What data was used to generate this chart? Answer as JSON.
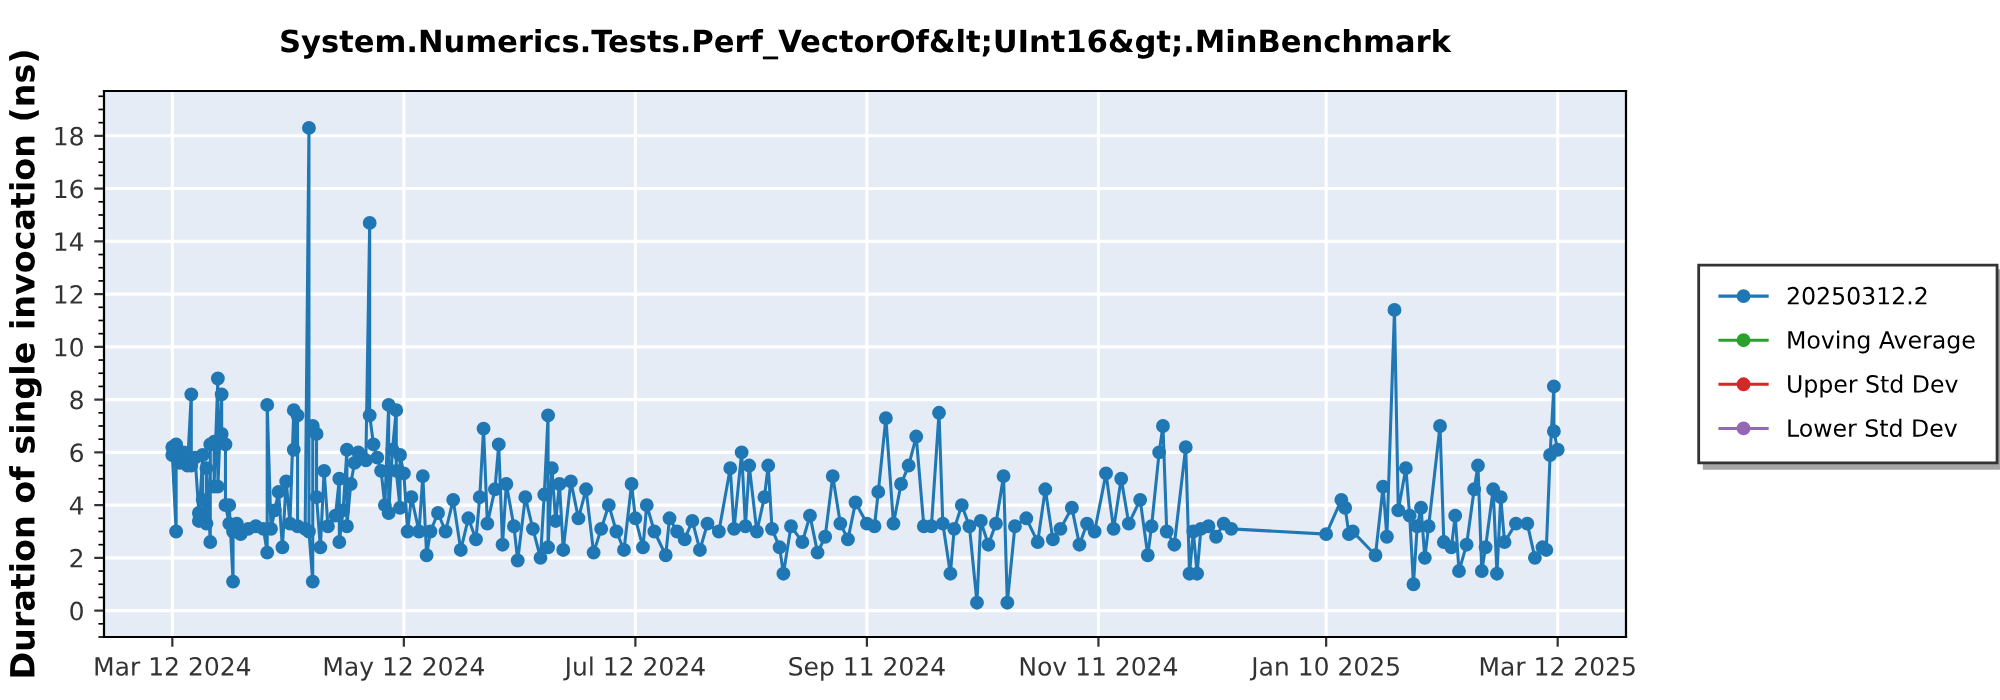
{
  "chart_data": {
    "type": "line",
    "title": "System.Numerics.Tests.Perf_VectorOf&lt;UInt16&gt;.MinBenchmark",
    "ylabel": "Duration of single invocation (ns)",
    "xlim": [
      "2024-02-23",
      "2025-03-30"
    ],
    "ylim": [
      -1,
      19.7
    ],
    "xticks": [
      {
        "value": "2024-03-12",
        "label": "Mar 12 2024"
      },
      {
        "value": "2024-05-12",
        "label": "May 12 2024"
      },
      {
        "value": "2024-07-12",
        "label": "Jul 12 2024"
      },
      {
        "value": "2024-09-11",
        "label": "Sep 11 2024"
      },
      {
        "value": "2024-11-11",
        "label": "Nov 11 2024"
      },
      {
        "value": "2025-01-10",
        "label": "Jan 10 2025"
      },
      {
        "value": "2025-03-12",
        "label": "Mar 12 2025"
      }
    ],
    "yticks": [
      0,
      2,
      4,
      6,
      8,
      10,
      12,
      14,
      16,
      18
    ],
    "grid": true,
    "legend": "right",
    "marker": "circle",
    "line_style": "solid",
    "series": [
      {
        "name": "20250312.2",
        "color": "#1f77b4",
        "x": [
          "2024-03-12",
          "2024-03-12",
          "2024-03-13",
          "2024-03-13",
          "2024-03-14",
          "2024-03-15",
          "2024-03-16",
          "2024-03-17",
          "2024-03-17",
          "2024-03-18",
          "2024-03-19",
          "2024-03-19",
          "2024-03-20",
          "2024-03-20",
          "2024-03-21",
          "2024-03-21",
          "2024-03-22",
          "2024-03-22",
          "2024-03-23",
          "2024-03-23",
          "2024-03-24",
          "2024-03-24",
          "2024-03-25",
          "2024-03-25",
          "2024-03-26",
          "2024-03-26",
          "2024-03-27",
          "2024-03-27",
          "2024-03-28",
          "2024-03-28",
          "2024-03-29",
          "2024-03-30",
          "2024-04-01",
          "2024-04-03",
          "2024-04-05",
          "2024-04-06",
          "2024-04-06",
          "2024-04-07",
          "2024-04-08",
          "2024-04-09",
          "2024-04-10",
          "2024-04-11",
          "2024-04-12",
          "2024-04-13",
          "2024-04-13",
          "2024-04-14",
          "2024-04-14",
          "2024-04-16",
          "2024-04-17",
          "2024-04-17",
          "2024-04-18",
          "2024-04-18",
          "2024-04-19",
          "2024-04-19",
          "2024-04-20",
          "2024-04-21",
          "2024-04-22",
          "2024-04-24",
          "2024-04-25",
          "2024-04-25",
          "2024-04-26",
          "2024-04-27",
          "2024-04-27",
          "2024-04-28",
          "2024-04-29",
          "2024-04-30",
          "2024-05-01",
          "2024-05-02",
          "2024-05-03",
          "2024-05-03",
          "2024-05-04",
          "2024-05-05",
          "2024-05-06",
          "2024-05-07",
          "2024-05-08",
          "2024-05-08",
          "2024-05-09",
          "2024-05-10",
          "2024-05-10",
          "2024-05-11",
          "2024-05-11",
          "2024-05-12",
          "2024-05-13",
          "2024-05-14",
          "2024-05-16",
          "2024-05-17",
          "2024-05-18",
          "2024-05-19",
          "2024-05-21",
          "2024-05-23",
          "2024-05-25",
          "2024-05-27",
          "2024-05-29",
          "2024-05-31",
          "2024-06-01",
          "2024-06-02",
          "2024-06-03",
          "2024-06-05",
          "2024-06-06",
          "2024-06-07",
          "2024-06-08",
          "2024-06-10",
          "2024-06-11",
          "2024-06-13",
          "2024-06-15",
          "2024-06-17",
          "2024-06-18",
          "2024-06-19",
          "2024-06-19",
          "2024-06-20",
          "2024-06-21",
          "2024-06-22",
          "2024-06-23",
          "2024-06-25",
          "2024-06-27",
          "2024-06-29",
          "2024-07-01",
          "2024-07-03",
          "2024-07-05",
          "2024-07-07",
          "2024-07-09",
          "2024-07-11",
          "2024-07-12",
          "2024-07-14",
          "2024-07-15",
          "2024-07-17",
          "2024-07-20",
          "2024-07-21",
          "2024-07-23",
          "2024-07-25",
          "2024-07-27",
          "2024-07-29",
          "2024-07-31",
          "2024-08-03",
          "2024-08-06",
          "2024-08-07",
          "2024-08-09",
          "2024-08-10",
          "2024-08-11",
          "2024-08-13",
          "2024-08-15",
          "2024-08-16",
          "2024-08-17",
          "2024-08-19",
          "2024-08-20",
          "2024-08-22",
          "2024-08-25",
          "2024-08-27",
          "2024-08-29",
          "2024-08-31",
          "2024-09-02",
          "2024-09-04",
          "2024-09-06",
          "2024-09-08",
          "2024-09-11",
          "2024-09-13",
          "2024-09-14",
          "2024-09-16",
          "2024-09-18",
          "2024-09-20",
          "2024-09-22",
          "2024-09-24",
          "2024-09-26",
          "2024-09-28",
          "2024-09-30",
          "2024-10-01",
          "2024-10-03",
          "2024-10-04",
          "2024-10-06",
          "2024-10-08",
          "2024-10-10",
          "2024-10-11",
          "2024-10-13",
          "2024-10-15",
          "2024-10-17",
          "2024-10-18",
          "2024-10-20",
          "2024-10-23",
          "2024-10-26",
          "2024-10-28",
          "2024-10-30",
          "2024-11-01",
          "2024-11-04",
          "2024-11-06",
          "2024-11-08",
          "2024-11-10",
          "2024-11-13",
          "2024-11-15",
          "2024-11-17",
          "2024-11-19",
          "2024-11-22",
          "2024-11-24",
          "2024-11-25",
          "2024-11-27",
          "2024-11-28",
          "2024-11-29",
          "2024-12-01",
          "2024-12-04",
          "2024-12-05",
          "2024-12-06",
          "2024-12-07",
          "2024-12-08",
          "2024-12-10",
          "2024-12-12",
          "2024-12-14",
          "2024-12-16",
          "2025-01-10",
          "2025-01-14",
          "2025-01-15",
          "2025-01-16",
          "2025-01-17",
          "2025-01-23",
          "2025-01-25",
          "2025-01-26",
          "2025-01-28",
          "2025-01-29",
          "2025-01-31",
          "2025-02-01",
          "2025-02-02",
          "2025-02-03",
          "2025-02-04",
          "2025-02-05",
          "2025-02-06",
          "2025-02-09",
          "2025-02-10",
          "2025-02-12",
          "2025-02-13",
          "2025-02-14",
          "2025-02-16",
          "2025-02-18",
          "2025-02-19",
          "2025-02-20",
          "2025-02-21",
          "2025-02-23",
          "2025-02-24",
          "2025-02-25",
          "2025-02-26",
          "2025-03-01",
          "2025-03-04",
          "2025-03-06",
          "2025-03-08",
          "2025-03-09",
          "2025-03-10",
          "2025-03-11",
          "2025-03-11",
          "2025-03-12"
        ],
        "values": [
          6.2,
          5.9,
          3.0,
          6.3,
          5.6,
          6.0,
          5.5,
          8.2,
          5.5,
          5.8,
          3.7,
          3.4,
          5.9,
          4.2,
          3.3,
          5.4,
          2.6,
          6.3,
          6.4,
          4.7,
          8.8,
          4.7,
          8.2,
          6.7,
          6.3,
          4.0,
          3.3,
          4.0,
          1.1,
          3.0,
          3.3,
          2.9,
          3.1,
          3.2,
          3.1,
          2.2,
          7.8,
          3.1,
          3.8,
          4.5,
          2.4,
          4.9,
          3.3,
          7.6,
          6.1,
          7.4,
          3.2,
          3.1,
          18.3,
          3.0,
          1.1,
          7.0,
          6.7,
          4.3,
          2.4,
          5.3,
          3.2,
          3.6,
          5.0,
          2.6,
          3.8,
          6.1,
          3.2,
          4.8,
          5.6,
          6.0,
          5.8,
          5.7,
          14.7,
          7.4,
          6.3,
          5.8,
          5.3,
          4.0,
          7.8,
          3.7,
          6.1,
          7.6,
          5.3,
          3.9,
          5.9,
          5.2,
          3.0,
          4.3,
          3.0,
          5.1,
          2.1,
          3.0,
          3.7,
          3.0,
          4.2,
          2.3,
          3.5,
          2.7,
          4.3,
          6.9,
          3.3,
          4.6,
          6.3,
          2.5,
          4.8,
          3.2,
          1.9,
          4.3,
          3.1,
          2.0,
          4.4,
          7.4,
          2.4,
          5.4,
          3.4,
          4.8,
          2.3,
          4.9,
          3.5,
          4.6,
          2.2,
          3.1,
          4.0,
          3.0,
          2.3,
          4.8,
          3.5,
          2.4,
          4.0,
          3.0,
          2.1,
          3.5,
          3.0,
          2.7,
          3.4,
          2.3,
          3.3,
          3.0,
          5.4,
          3.1,
          6.0,
          3.2,
          5.5,
          3.0,
          4.3,
          5.5,
          3.1,
          2.4,
          1.4,
          3.2,
          2.6,
          3.6,
          2.2,
          2.8,
          5.1,
          3.3,
          2.7,
          4.1,
          3.3,
          3.2,
          4.5,
          7.3,
          3.3,
          4.8,
          5.5,
          6.6,
          3.2,
          3.2,
          7.5,
          3.3,
          1.4,
          3.1,
          4.0,
          3.2,
          0.3,
          3.4,
          2.5,
          3.3,
          5.1,
          0.3,
          3.2,
          3.5,
          2.6,
          4.6,
          2.7,
          3.1,
          3.9,
          2.5,
          3.3,
          3.0,
          5.2,
          3.1,
          5.0,
          3.3,
          4.2,
          2.1,
          3.2,
          6.0,
          7.0,
          3.0,
          2.5,
          6.2,
          1.4,
          3.0,
          1.4,
          3.1,
          3.2,
          2.8,
          3.3,
          3.1,
          2.9,
          4.2,
          3.9,
          2.9,
          3.0,
          2.1,
          4.7,
          2.8,
          11.4,
          3.8,
          5.4,
          3.6,
          1.0,
          3.2,
          3.9,
          2.0,
          3.2,
          7.0,
          2.6,
          2.4,
          3.6,
          1.5,
          2.5,
          4.6,
          5.5,
          1.5,
          2.4,
          4.6,
          1.4,
          4.3,
          2.6,
          3.3,
          3.3,
          2.0,
          2.4,
          2.3,
          5.9,
          8.5,
          6.8,
          6.1
        ]
      },
      {
        "name": "Moving Average",
        "color": "#2ca02c"
      },
      {
        "name": "Upper Std Dev",
        "color": "#d62728"
      },
      {
        "name": "Lower Std Dev",
        "color": "#9467bd"
      }
    ]
  }
}
